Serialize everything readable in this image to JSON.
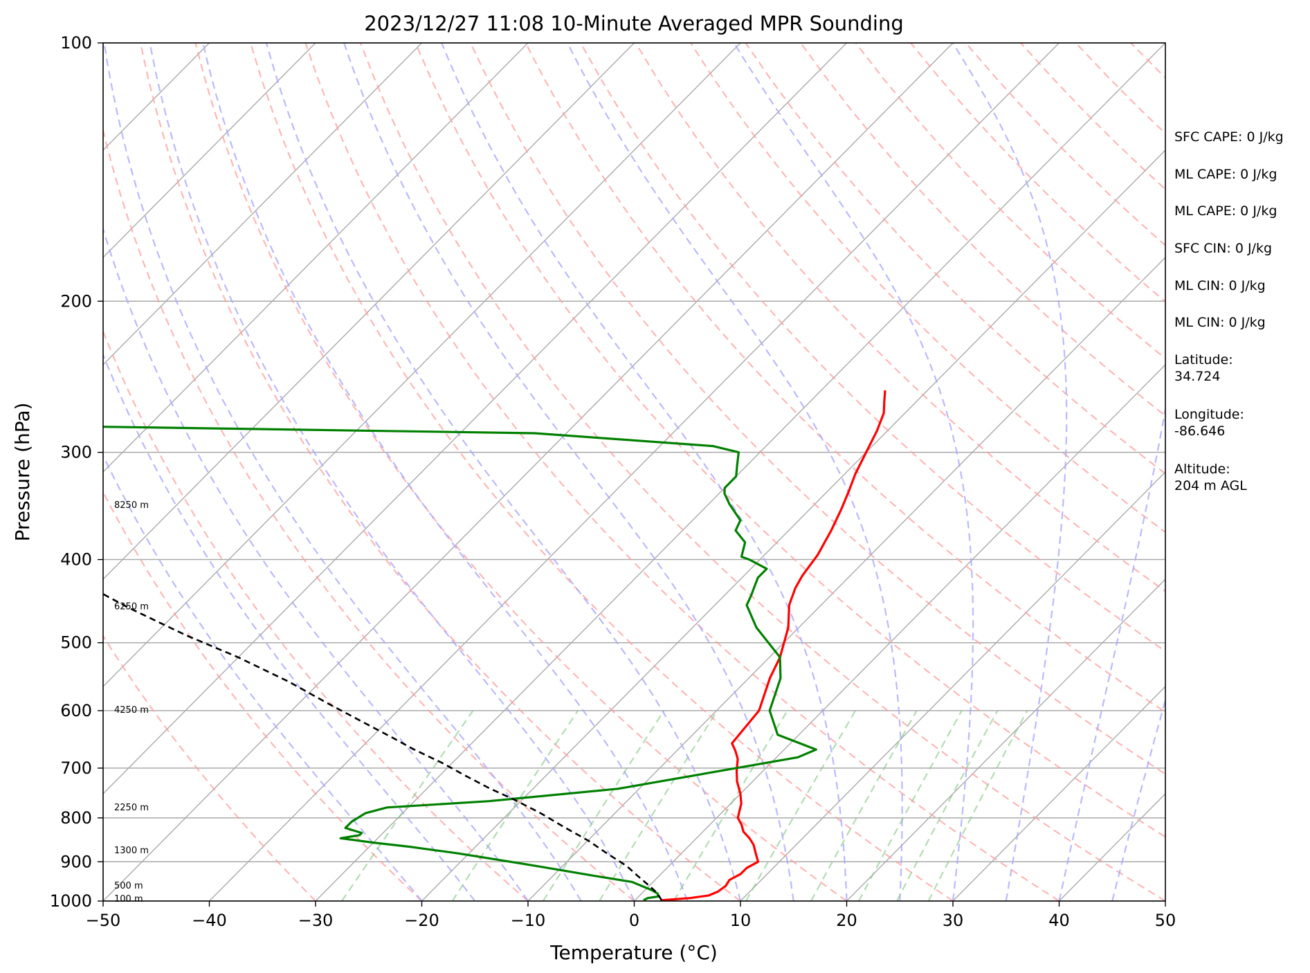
{
  "chart_data": {
    "type": "line",
    "title": "2023/12/27 11:08 10-Minute Averaged MPR Sounding",
    "xlabel": "Temperature (°C)",
    "ylabel": "Pressure (hPa)",
    "xlim": [
      -50,
      50
    ],
    "ylim": [
      1000,
      100
    ],
    "y_scale": "log",
    "skew": "skew-T",
    "grid": true,
    "x_ticks": [
      "−50",
      "−40",
      "−30",
      "−20",
      "−10",
      "0",
      "10",
      "20",
      "30",
      "40",
      "50"
    ],
    "y_ticks": [
      "100",
      "200",
      "300",
      "400",
      "500",
      "600",
      "700",
      "800",
      "900",
      "1000"
    ],
    "height_labels": [
      {
        "text": "8250 m",
        "pressure": 345
      },
      {
        "text": "6250 m",
        "pressure": 453
      },
      {
        "text": "4250 m",
        "pressure": 598
      },
      {
        "text": "2250 m",
        "pressure": 777
      },
      {
        "text": "1300 m",
        "pressure": 872
      },
      {
        "text": "500 m",
        "pressure": 958
      },
      {
        "text": "100 m",
        "pressure": 993
      }
    ],
    "series": [
      {
        "role": "temperature",
        "color": "#ff0000",
        "points": [
          [
            2.5,
            998
          ],
          [
            5.0,
            992
          ],
          [
            6.5,
            985
          ],
          [
            7.0,
            975
          ],
          [
            7.2,
            960
          ],
          [
            7.0,
            945
          ],
          [
            7.5,
            930
          ],
          [
            7.5,
            915
          ],
          [
            8.0,
            900
          ],
          [
            7.0,
            880
          ],
          [
            6.0,
            860
          ],
          [
            5.0,
            845
          ],
          [
            3.8,
            830
          ],
          [
            3.0,
            815
          ],
          [
            2.0,
            800
          ],
          [
            1.5,
            785
          ],
          [
            1.0,
            770
          ],
          [
            0.0,
            750
          ],
          [
            -1.5,
            725
          ],
          [
            -2.5,
            705
          ],
          [
            -3.5,
            683
          ],
          [
            -4.5,
            668
          ],
          [
            -5.5,
            655
          ],
          [
            -6.0,
            600
          ],
          [
            -8.0,
            550
          ],
          [
            -9.0,
            520
          ],
          [
            -11.0,
            480
          ],
          [
            -13.0,
            452
          ],
          [
            -14.0,
            432
          ],
          [
            -14.5,
            418
          ],
          [
            -15.0,
            395
          ],
          [
            -16.0,
            370
          ],
          [
            -17.0,
            350
          ],
          [
            -18.0,
            333
          ],
          [
            -19.0,
            318
          ],
          [
            -20.0,
            300
          ],
          [
            -21.0,
            283
          ],
          [
            -22.0,
            270
          ],
          [
            -23.0,
            262
          ],
          [
            -24.0,
            254
          ]
        ]
      },
      {
        "role": "dewpoint",
        "color": "#008000",
        "points": [
          [
            0.8,
            998
          ],
          [
            1.0,
            992
          ],
          [
            1.8,
            988
          ],
          [
            1.5,
            980
          ],
          [
            0.5,
            970
          ],
          [
            -2.0,
            950
          ],
          [
            -6.0,
            935
          ],
          [
            -12.0,
            912
          ],
          [
            -17.0,
            894
          ],
          [
            -21.0,
            880
          ],
          [
            -26.0,
            865
          ],
          [
            -30.0,
            855
          ],
          [
            -33.5,
            845
          ],
          [
            -32.0,
            838
          ],
          [
            -32.0,
            833
          ],
          [
            -34.0,
            822
          ],
          [
            -34.0,
            808
          ],
          [
            -33.5,
            790
          ],
          [
            -32.0,
            778
          ],
          [
            -23.0,
            765
          ],
          [
            -12.0,
            740
          ],
          [
            -4.0,
            705
          ],
          [
            2.0,
            680
          ],
          [
            3.0,
            666
          ],
          [
            -2.0,
            640
          ],
          [
            -5.0,
            600
          ],
          [
            -7.0,
            550
          ],
          [
            -9.0,
            520
          ],
          [
            -14.0,
            480
          ],
          [
            -17.0,
            452
          ],
          [
            -17.5,
            440
          ],
          [
            -18.0,
            430
          ],
          [
            -18.5,
            420
          ],
          [
            -18.5,
            410
          ],
          [
            -21.0,
            400
          ],
          [
            -22.0,
            397
          ],
          [
            -23.0,
            382
          ],
          [
            -25.0,
            370
          ],
          [
            -25.5,
            360
          ],
          [
            -28.0,
            345
          ],
          [
            -29.5,
            335
          ],
          [
            -30.0,
            330
          ],
          [
            -30.0,
            320
          ],
          [
            -31.0,
            310
          ],
          [
            -32.0,
            300
          ],
          [
            -35.0,
            295
          ],
          [
            -53.0,
            285
          ],
          [
            -95.0,
            280
          ]
        ]
      },
      {
        "role": "parcel",
        "color": "#000000",
        "style": "dashed",
        "points": [
          [
            2.5,
            998
          ],
          [
            1.5,
            980
          ],
          [
            0.0,
            960
          ],
          [
            -2.0,
            935
          ],
          [
            -4.0,
            910
          ],
          [
            -7.0,
            880
          ],
          [
            -10.0,
            850
          ],
          [
            -13.5,
            820
          ],
          [
            -17.0,
            790
          ],
          [
            -21.0,
            760
          ],
          [
            -24.0,
            740
          ],
          [
            -27.5,
            715
          ],
          [
            -31.0,
            690
          ],
          [
            -35.0,
            665
          ],
          [
            -38.0,
            645
          ],
          [
            -42.0,
            620
          ],
          [
            -47.0,
            590
          ],
          [
            -53.0,
            555
          ],
          [
            -60.0,
            520
          ],
          [
            -67.0,
            490
          ],
          [
            -75.0,
            455
          ],
          [
            -83.0,
            420
          ],
          [
            -92.0,
            387
          ],
          [
            -101.0,
            355
          ],
          [
            -110.0,
            327
          ],
          [
            -118.0,
            303
          ],
          [
            -127.0,
            280
          ],
          [
            -133.0,
            266
          ]
        ]
      }
    ]
  },
  "info_panel": [
    "SFC CAPE: 0 J/kg",
    "ML CAPE: 0 J/kg",
    "ML CAPE: 0 J/kg",
    "SFC CIN: 0 J/kg",
    "ML CIN: 0 J/kg",
    "ML CIN: 0 J/kg",
    "Latitude:\n34.724",
    "Longitude:\n-86.646",
    "Altitude:\n204 m AGL"
  ]
}
